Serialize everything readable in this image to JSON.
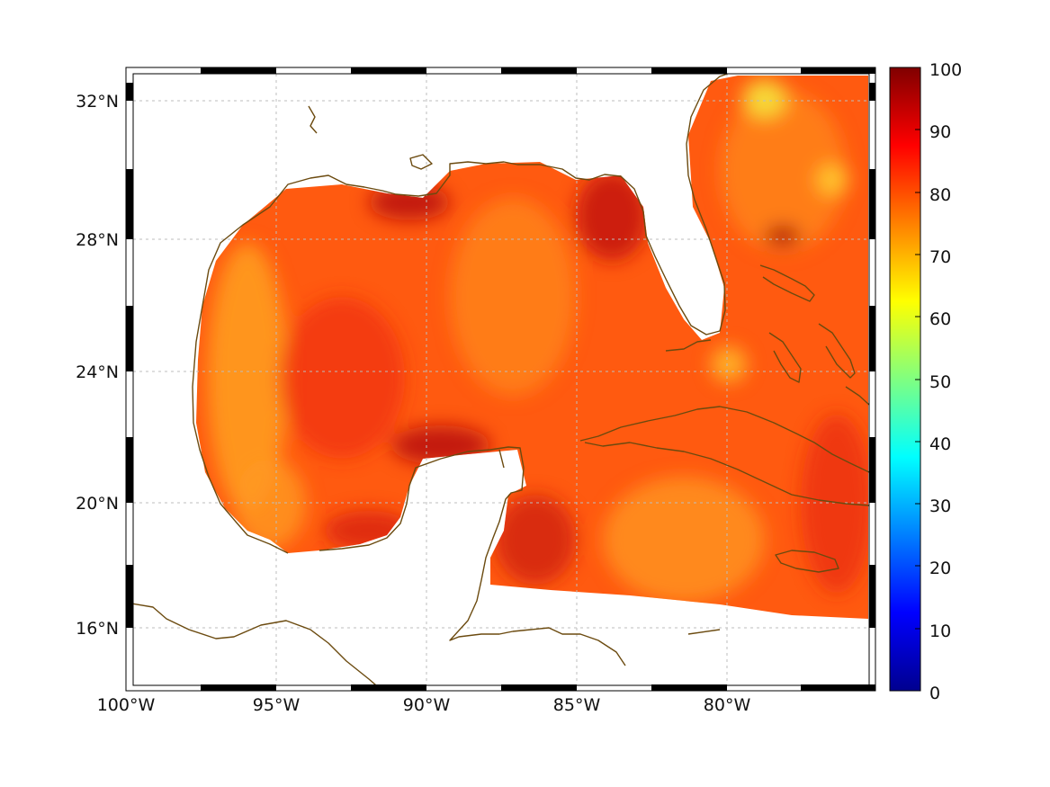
{
  "map": {
    "x_ticks": [
      "100°W",
      "95°W",
      "90°W",
      "85°W",
      "80°W"
    ],
    "y_ticks": [
      "32°N",
      "28°N",
      "24°N",
      "20°N",
      "16°N"
    ],
    "colorbar": {
      "min": 0,
      "max": 100,
      "labels": [
        "100",
        "90",
        "80",
        "70",
        "60",
        "50",
        "40",
        "30",
        "20",
        "10",
        "0"
      ]
    },
    "colors": {
      "coastline": "#6b4a0f",
      "grid": "#bdbdbd",
      "frame": "#000000",
      "ocean_mid": "#ff5a10",
      "ocean_high": "#cc1010",
      "ocean_low": "#ffa020"
    },
    "colormap": "jet"
  }
}
